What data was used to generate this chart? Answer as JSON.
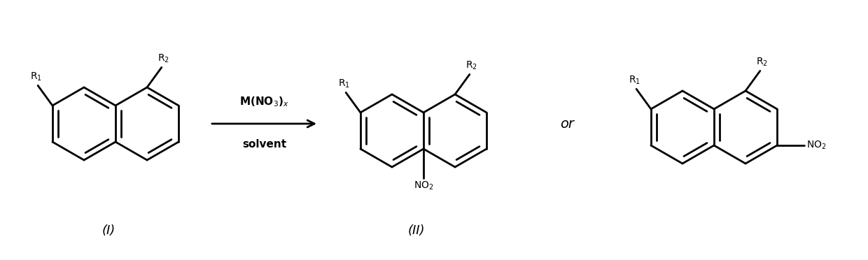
{
  "background_color": "#ffffff",
  "line_color": "#000000",
  "line_width": 2.0,
  "label_I": "(I)",
  "label_II": "(II)",
  "arrow_text_top": "M(NO$_3$)$_x$",
  "arrow_text_bottom": "solvent",
  "or_text": "or",
  "no2_text": "NO$_2$",
  "r1_text": "R$_1$",
  "r2_text": "R$_2$",
  "figsize": [
    12.4,
    3.72
  ],
  "dpi": 100
}
